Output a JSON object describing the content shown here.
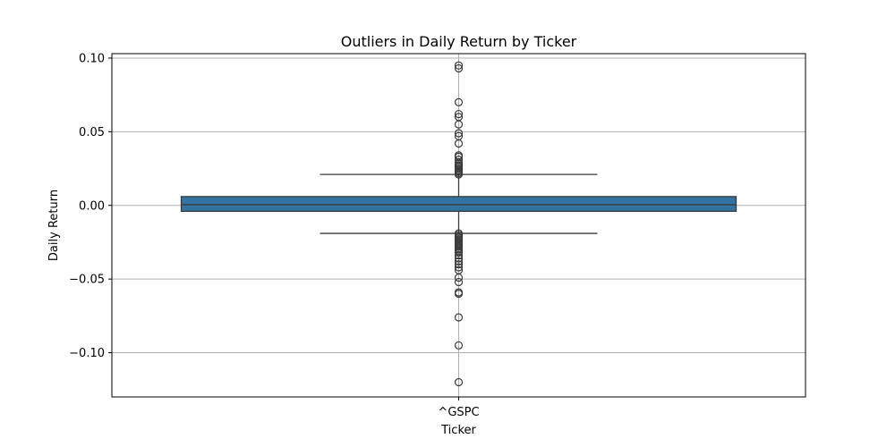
{
  "chart_data": {
    "type": "box",
    "title": "Outliers in Daily Return by Ticker",
    "xlabel": "Ticker",
    "ylabel": "Daily Return",
    "categories": [
      "^GSPC"
    ],
    "ylim": [
      -0.13,
      0.103
    ],
    "yticks": [
      -0.1,
      -0.05,
      0.0,
      0.05,
      0.1
    ],
    "ytick_labels": [
      "−0.10",
      "−0.05",
      "0.00",
      "0.05",
      "0.10"
    ],
    "grid": true,
    "colors": {
      "box_fill": "#3274a1",
      "line": "#3b3b3b",
      "grid": "#b0b0b0"
    },
    "boxes": [
      {
        "category": "^GSPC",
        "whisker_low": -0.019,
        "q1": -0.004,
        "median": 0.0005,
        "q3": 0.006,
        "whisker_high": 0.021,
        "outliers": [
          0.095,
          0.093,
          0.07,
          0.062,
          0.06,
          0.055,
          0.049,
          0.047,
          0.042,
          0.034,
          0.033,
          0.031,
          0.029,
          0.028,
          0.027,
          0.026,
          0.025,
          0.024,
          0.023,
          0.022,
          0.021,
          -0.019,
          -0.02,
          -0.021,
          -0.022,
          -0.023,
          -0.024,
          -0.025,
          -0.026,
          -0.027,
          -0.028,
          -0.029,
          -0.03,
          -0.031,
          -0.032,
          -0.034,
          -0.036,
          -0.038,
          -0.04,
          -0.042,
          -0.044,
          -0.049,
          -0.052,
          -0.059,
          -0.06,
          -0.076,
          -0.095,
          -0.12
        ]
      }
    ]
  }
}
